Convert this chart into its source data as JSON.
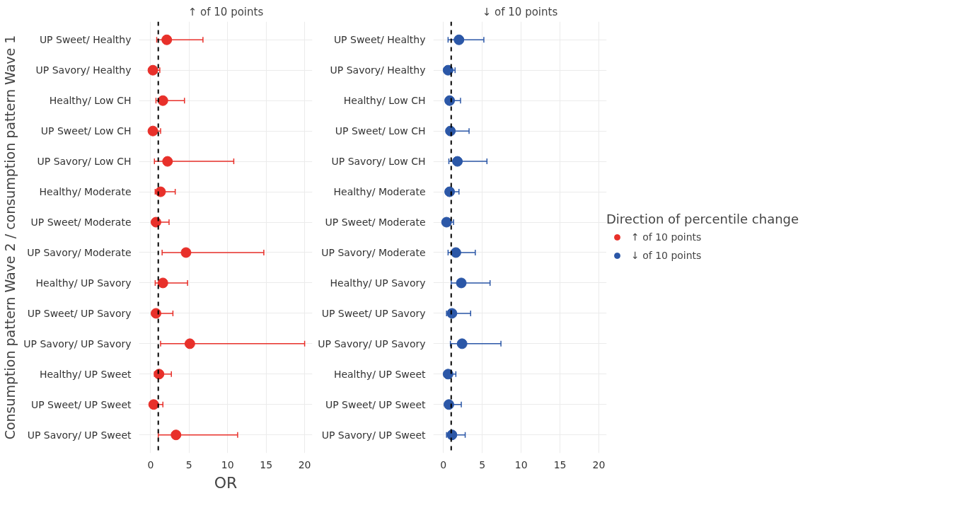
{
  "chart_data": [
    {
      "type": "scatter",
      "orientation": "horizontal",
      "title": "↑ of 10 points",
      "xlabel": "OR",
      "ylabel": "Consumption pattern Wave 2 / consumption pattern Wave 1",
      "categories": [
        "UP Sweet/ Healthy",
        "UP Savory/ Healthy",
        "Healthy/ Low CH",
        "UP Sweet/ Low CH",
        "UP Savory/ Low CH",
        "Healthy/ Moderate",
        "UP Sweet/ Moderate",
        "UP Savory/ Moderate",
        "Healthy/ UP Savory",
        "UP Sweet/ UP Savory",
        "UP Savory/ UP Savory",
        "Healthy/ UP Sweet",
        "UP Sweet/ UP Sweet",
        "UP Savory/ UP Sweet"
      ],
      "series": [
        {
          "name": "↑ of 10 points",
          "color": "#e8302a",
          "values": [
            2.1,
            0.3,
            1.6,
            0.3,
            2.2,
            1.3,
            0.7,
            4.6,
            1.6,
            0.7,
            5.1,
            1.1,
            0.4,
            3.3
          ],
          "errors": [
            [
              0.8,
              6.8
            ],
            [
              0.3,
              1.2
            ],
            [
              0.7,
              4.4
            ],
            [
              0.3,
              1.3
            ],
            [
              0.5,
              10.8
            ],
            [
              0.6,
              3.2
            ],
            [
              0.3,
              2.4
            ],
            [
              1.5,
              14.7
            ],
            [
              0.6,
              4.8
            ],
            [
              0.7,
              2.9
            ],
            [
              1.3,
              20
            ],
            [
              0.5,
              2.7
            ],
            [
              0.4,
              1.6
            ],
            [
              1.0,
              11.3
            ]
          ]
        }
      ],
      "xlim": [
        -1.5,
        21
      ],
      "xticks": [
        0,
        5,
        10,
        15,
        20
      ],
      "ref_lines": [
        {
          "axis": "x",
          "value": 1,
          "color": "#000000",
          "line_style": "dashed"
        }
      ],
      "grid": true,
      "marker": "circle"
    },
    {
      "type": "scatter",
      "orientation": "horizontal",
      "title": "↓ of 10 points",
      "legend_title": "Direction of percentile change",
      "legend": "right",
      "categories": [
        "UP Sweet/ Healthy",
        "UP Savory/ Healthy",
        "Healthy/ Low CH",
        "UP Sweet/ Low CH",
        "UP Savory/ Low CH",
        "Healthy/ Moderate",
        "UP Sweet/ Moderate",
        "UP Savory/ Moderate",
        "Healthy/ UP Savory",
        "UP Sweet/ UP Savory",
        "UP Savory/ UP Savory",
        "Healthy/ UP Sweet",
        "UP Sweet/ UP Sweet",
        "UP Savory/ UP Sweet"
      ],
      "series": [
        {
          "name": "↓ of 10 points",
          "color": "#2b57a7",
          "values": [
            2.0,
            0.6,
            0.8,
            0.9,
            1.8,
            0.8,
            0.4,
            1.6,
            2.3,
            1.1,
            2.4,
            0.6,
            0.7,
            1.1
          ],
          "errors": [
            [
              0.6,
              5.2
            ],
            [
              0.2,
              1.5
            ],
            [
              0.4,
              2.2
            ],
            [
              0.5,
              3.3
            ],
            [
              0.7,
              5.6
            ],
            [
              0.4,
              2.0
            ],
            [
              0.4,
              1.3
            ],
            [
              0.6,
              4.1
            ],
            [
              1.0,
              6.0
            ],
            [
              0.4,
              3.5
            ],
            [
              0.9,
              7.4
            ],
            [
              0.6,
              1.6
            ],
            [
              0.3,
              2.3
            ],
            [
              0.4,
              2.8
            ]
          ]
        }
      ],
      "xlim": [
        -1.3,
        21
      ],
      "xticks": [
        0,
        5,
        10,
        15,
        20
      ],
      "ref_lines": [
        {
          "axis": "x",
          "value": 1,
          "color": "#000000",
          "line_style": "dashed"
        }
      ],
      "grid": true,
      "marker": "circle"
    }
  ]
}
